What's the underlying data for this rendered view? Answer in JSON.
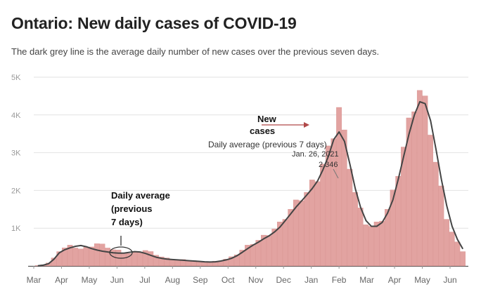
{
  "header": {
    "title": "Ontario: New daily cases of COVID-19",
    "subtitle": "The dark grey line is the average daily number of new cases over the previous seven days."
  },
  "colors": {
    "bar": "#e2a3a1",
    "bar_stroke": "#d88f8d",
    "line": "#444444",
    "grid": "#e2e2e2",
    "axis": "#555555",
    "arrow": "#b04848"
  },
  "annotations": {
    "left_label": [
      "Daily average",
      "(previous",
      "7 days)"
    ],
    "new_cases_label": [
      "New",
      "cases"
    ],
    "mid_daily_avg": "Daily average (previous 7 days)",
    "peak_date": "Jan. 26, 2021",
    "peak_value": "2,346"
  },
  "chart_data": {
    "type": "bar",
    "title": "Ontario: New daily cases of COVID-19",
    "subtitle": "The dark grey line is the average daily number of new cases over the previous seven days.",
    "xlabel": "",
    "ylabel": "",
    "ylim": [
      0,
      5000
    ],
    "yticks": [
      1000,
      2000,
      3000,
      4000,
      5000
    ],
    "ytick_labels": [
      "1K",
      "2K",
      "3K",
      "4K",
      "5K"
    ],
    "xtick_labels": [
      "Mar",
      "Apr",
      "May",
      "Jun",
      "Jul",
      "Aug",
      "Sep",
      "Oct",
      "Nov",
      "Dec",
      "Jan",
      "Feb",
      "Mar",
      "Apr",
      "May",
      "Jun"
    ],
    "series": [
      {
        "name": "New cases",
        "kind": "bar",
        "values_weekly": [
          10,
          30,
          80,
          200,
          400,
          480,
          520,
          500,
          450,
          470,
          530,
          590,
          550,
          500,
          430,
          400,
          360,
          330,
          350,
          390,
          410,
          360,
          300,
          240,
          200,
          180,
          170,
          160,
          150,
          140,
          120,
          110,
          110,
          120,
          140,
          180,
          230,
          310,
          420,
          520,
          600,
          680,
          770,
          850,
          980,
          1100,
          1300,
          1500,
          1650,
          1820,
          1950,
          2150,
          2350,
          2700,
          3000,
          3550,
          4200,
          3400,
          2700,
          1950,
          1450,
          1150,
          1050,
          1100,
          1250,
          1500,
          1900,
          2500,
          3150,
          3700,
          4300,
          4650,
          4250,
          3650,
          2750,
          2000,
          1300,
          900,
          600,
          400
        ]
      },
      {
        "name": "Daily average (previous 7 days)",
        "kind": "line",
        "values_weekly": [
          5,
          20,
          60,
          180,
          350,
          430,
          480,
          520,
          540,
          510,
          460,
          420,
          390,
          370,
          350,
          340,
          340,
          360,
          380,
          370,
          330,
          280,
          230,
          200,
          180,
          170,
          160,
          150,
          140,
          130,
          120,
          110,
          105,
          110,
          130,
          160,
          200,
          270,
          360,
          460,
          550,
          630,
          720,
          800,
          900,
          1030,
          1200,
          1380,
          1560,
          1720,
          1880,
          2050,
          2250,
          2550,
          2900,
          3350,
          3550,
          3300,
          2700,
          2050,
          1550,
          1200,
          1050,
          1050,
          1150,
          1400,
          1750,
          2300,
          2900,
          3500,
          4000,
          4350,
          4300,
          3850,
          3100,
          2300,
          1600,
          1050,
          700,
          450
        ]
      }
    ]
  }
}
